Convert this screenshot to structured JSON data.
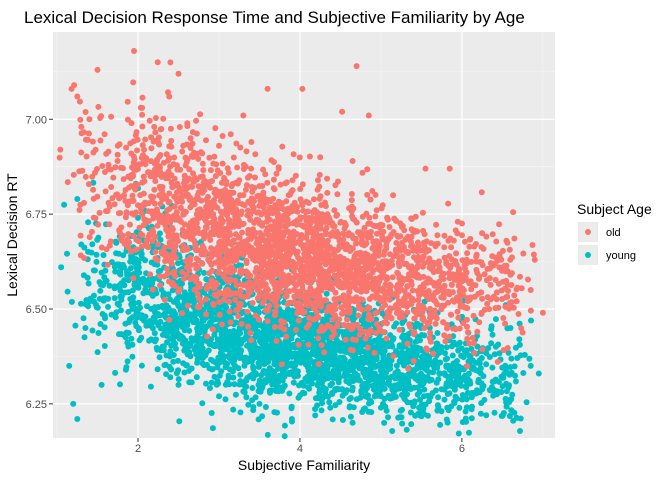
{
  "chart_data": {
    "type": "scatter",
    "title": "Lexical Decision Response Time and Subjective Familiarity by Age",
    "xlabel": "Subjective Familiarity",
    "ylabel": "Lexical Decision RT",
    "xlim": [
      0.95,
      7.15
    ],
    "ylim": [
      6.16,
      7.23
    ],
    "xticks": [
      2,
      4,
      6
    ],
    "xtick_labels": [
      "2",
      "4",
      "6"
    ],
    "yticks": [
      6.25,
      6.5,
      6.75,
      7.0
    ],
    "ytick_labels": [
      "6.25",
      "6.50",
      "6.75",
      "7.00"
    ],
    "grid": true,
    "legend": {
      "title": "Subject Age",
      "placement": "right"
    },
    "series": [
      {
        "name": "old",
        "color": "#f8766d",
        "points": [
          {
            "x": 1.04,
            "y": 6.92
          },
          {
            "x": 1.18,
            "y": 7.08
          },
          {
            "x": 1.21,
            "y": 7.09
          },
          {
            "x": 1.25,
            "y": 7.06
          },
          {
            "x": 1.3,
            "y": 6.98
          },
          {
            "x": 1.4,
            "y": 7.0
          },
          {
            "x": 1.5,
            "y": 7.13
          },
          {
            "x": 1.95,
            "y": 7.18
          },
          {
            "x": 2.4,
            "y": 7.15
          },
          {
            "x": 2.5,
            "y": 7.12
          },
          {
            "x": 3.6,
            "y": 7.08
          },
          {
            "x": 4.03,
            "y": 7.08
          },
          {
            "x": 4.52,
            "y": 7.02
          },
          {
            "x": 4.7,
            "y": 7.14
          },
          {
            "x": 4.85,
            "y": 7.01
          },
          {
            "x": 5.55,
            "y": 6.87
          },
          {
            "x": 5.85,
            "y": 6.87
          },
          {
            "x": 6.55,
            "y": 6.68
          },
          {
            "x": 6.9,
            "y": 6.63
          },
          {
            "x": 7.0,
            "y": 6.49
          },
          {
            "x": 2.05,
            "y": 7.03
          },
          {
            "x": 1.75,
            "y": 6.93
          },
          {
            "x": 1.6,
            "y": 6.81
          },
          {
            "x": 2.2,
            "y": 6.98
          },
          {
            "x": 2.65,
            "y": 6.95
          },
          {
            "x": 3.0,
            "y": 6.93
          },
          {
            "x": 3.3,
            "y": 7.01
          },
          {
            "x": 3.4,
            "y": 6.94
          },
          {
            "x": 4.25,
            "y": 6.9
          },
          {
            "x": 4.65,
            "y": 6.89
          },
          {
            "x": 5.15,
            "y": 6.8
          },
          {
            "x": 5.95,
            "y": 6.73
          },
          {
            "x": 6.25,
            "y": 6.7
          },
          {
            "x": 6.6,
            "y": 6.59
          },
          {
            "x": 6.85,
            "y": 6.55
          }
        ],
        "clusters": [
          {
            "x": 1.45,
            "y": 6.84,
            "sx": 0.25,
            "sy": 0.12,
            "n": 50
          },
          {
            "x": 2.0,
            "y": 6.82,
            "sx": 0.32,
            "sy": 0.11,
            "n": 200
          },
          {
            "x": 2.55,
            "y": 6.75,
            "sx": 0.33,
            "sy": 0.1,
            "n": 300
          },
          {
            "x": 3.1,
            "y": 6.7,
            "sx": 0.33,
            "sy": 0.1,
            "n": 400
          },
          {
            "x": 3.7,
            "y": 6.66,
            "sx": 0.33,
            "sy": 0.09,
            "n": 450
          },
          {
            "x": 4.25,
            "y": 6.62,
            "sx": 0.32,
            "sy": 0.09,
            "n": 420
          },
          {
            "x": 4.8,
            "y": 6.6,
            "sx": 0.32,
            "sy": 0.09,
            "n": 350
          },
          {
            "x": 5.4,
            "y": 6.58,
            "sx": 0.33,
            "sy": 0.08,
            "n": 270
          },
          {
            "x": 6.0,
            "y": 6.56,
            "sx": 0.32,
            "sy": 0.08,
            "n": 180
          },
          {
            "x": 6.55,
            "y": 6.57,
            "sx": 0.22,
            "sy": 0.08,
            "n": 70
          }
        ]
      },
      {
        "name": "young",
        "color": "#00bfc4",
        "points": [
          {
            "x": 1.2,
            "y": 6.25
          },
          {
            "x": 1.25,
            "y": 6.21
          },
          {
            "x": 1.05,
            "y": 6.61
          },
          {
            "x": 1.25,
            "y": 6.79
          },
          {
            "x": 1.15,
            "y": 6.35
          },
          {
            "x": 1.35,
            "y": 6.45
          },
          {
            "x": 1.55,
            "y": 6.3
          },
          {
            "x": 3.9,
            "y": 6.21
          },
          {
            "x": 4.65,
            "y": 6.2
          },
          {
            "x": 5.5,
            "y": 6.24
          },
          {
            "x": 6.3,
            "y": 6.22
          },
          {
            "x": 6.95,
            "y": 6.33
          },
          {
            "x": 6.85,
            "y": 6.35
          },
          {
            "x": 2.3,
            "y": 6.77
          },
          {
            "x": 2.0,
            "y": 6.74
          },
          {
            "x": 1.85,
            "y": 6.34
          },
          {
            "x": 2.5,
            "y": 6.3
          },
          {
            "x": 3.0,
            "y": 6.27
          },
          {
            "x": 3.5,
            "y": 6.25
          },
          {
            "x": 4.3,
            "y": 6.27
          },
          {
            "x": 5.0,
            "y": 6.24
          },
          {
            "x": 6.6,
            "y": 6.45
          },
          {
            "x": 6.0,
            "y": 6.47
          },
          {
            "x": 5.7,
            "y": 6.49
          },
          {
            "x": 1.3,
            "y": 6.67
          },
          {
            "x": 1.4,
            "y": 6.52
          }
        ],
        "clusters": [
          {
            "x": 1.45,
            "y": 6.58,
            "sx": 0.25,
            "sy": 0.1,
            "n": 60
          },
          {
            "x": 2.0,
            "y": 6.56,
            "sx": 0.32,
            "sy": 0.1,
            "n": 220
          },
          {
            "x": 2.55,
            "y": 6.5,
            "sx": 0.33,
            "sy": 0.09,
            "n": 320
          },
          {
            "x": 3.1,
            "y": 6.45,
            "sx": 0.33,
            "sy": 0.08,
            "n": 420
          },
          {
            "x": 3.7,
            "y": 6.41,
            "sx": 0.33,
            "sy": 0.08,
            "n": 470
          },
          {
            "x": 4.25,
            "y": 6.39,
            "sx": 0.32,
            "sy": 0.07,
            "n": 440
          },
          {
            "x": 4.8,
            "y": 6.37,
            "sx": 0.32,
            "sy": 0.07,
            "n": 360
          },
          {
            "x": 5.4,
            "y": 6.35,
            "sx": 0.33,
            "sy": 0.07,
            "n": 280
          },
          {
            "x": 6.0,
            "y": 6.33,
            "sx": 0.32,
            "sy": 0.07,
            "n": 190
          },
          {
            "x": 6.55,
            "y": 6.33,
            "sx": 0.22,
            "sy": 0.07,
            "n": 70
          }
        ]
      }
    ]
  }
}
